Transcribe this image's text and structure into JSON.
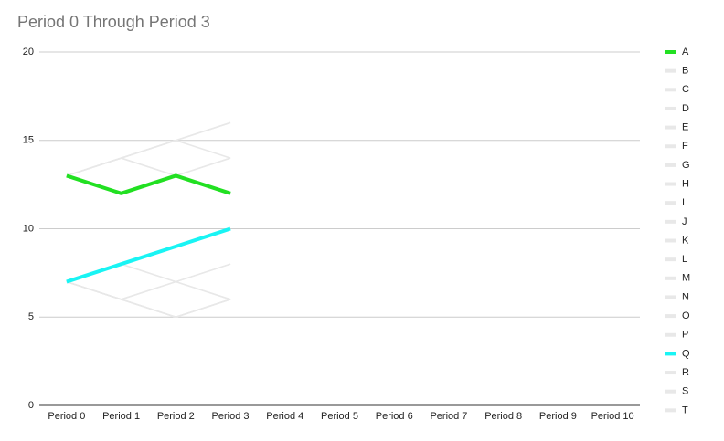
{
  "chart_data": {
    "type": "line",
    "title": "Period 0 Through Period 3",
    "categories": [
      "Period 0",
      "Period 1",
      "Period 2",
      "Period 3",
      "Period 4",
      "Period 5",
      "Period 6",
      "Period 7",
      "Period 8",
      "Period 9",
      "Period 10"
    ],
    "ylim": [
      0,
      20
    ],
    "yticks": [
      0,
      5,
      10,
      15,
      20
    ],
    "grid": true,
    "legend": "right",
    "series": [
      {
        "name": "A",
        "color": "#22e022",
        "values": [
          13,
          12,
          13,
          12,
          null,
          null,
          null,
          null,
          null,
          null,
          null
        ]
      },
      {
        "name": "B",
        "color": "#e8e8e8",
        "values": [
          13,
          14,
          15,
          16,
          null,
          null,
          null,
          null,
          null,
          null,
          null
        ]
      },
      {
        "name": "C",
        "color": "#e8e8e8",
        "values": [
          13,
          14,
          15,
          14,
          null,
          null,
          null,
          null,
          null,
          null,
          null
        ]
      },
      {
        "name": "D",
        "color": "#e8e8e8",
        "values": [
          13,
          14,
          13,
          14,
          null,
          null,
          null,
          null,
          null,
          null,
          null
        ]
      },
      {
        "name": "E",
        "color": "#e8e8e8",
        "values": [
          13,
          12,
          13,
          14,
          null,
          null,
          null,
          null,
          null,
          null,
          null
        ]
      },
      {
        "name": "F",
        "color": "#e8e8e8",
        "values": [
          13,
          14,
          13,
          12,
          null,
          null,
          null,
          null,
          null,
          null,
          null
        ]
      },
      {
        "name": "G",
        "color": "#e8e8e8",
        "values": [
          13,
          12,
          13,
          12,
          null,
          null,
          null,
          null,
          null,
          null,
          null
        ]
      },
      {
        "name": "H",
        "color": "#e8e8e8",
        "values": [
          7,
          6,
          5,
          6,
          null,
          null,
          null,
          null,
          null,
          null,
          null
        ]
      },
      {
        "name": "I",
        "color": "#e8e8e8",
        "values": [
          7,
          6,
          7,
          8,
          null,
          null,
          null,
          null,
          null,
          null,
          null
        ]
      },
      {
        "name": "J",
        "color": "#e8e8e8",
        "values": [
          7,
          8,
          7,
          6,
          null,
          null,
          null,
          null,
          null,
          null,
          null
        ]
      },
      {
        "name": "K",
        "color": "#e8e8e8",
        "values": [
          7,
          6,
          7,
          6,
          null,
          null,
          null,
          null,
          null,
          null,
          null
        ]
      },
      {
        "name": "L",
        "color": "#e8e8e8",
        "values": [
          7,
          8,
          7,
          8,
          null,
          null,
          null,
          null,
          null,
          null,
          null
        ]
      },
      {
        "name": "M",
        "color": "#e8e8e8",
        "values": [
          7,
          6,
          5,
          6,
          null,
          null,
          null,
          null,
          null,
          null,
          null
        ]
      },
      {
        "name": "N",
        "color": "#e8e8e8",
        "values": [
          7,
          8,
          9,
          10,
          null,
          null,
          null,
          null,
          null,
          null,
          null
        ]
      },
      {
        "name": "O",
        "color": "#e8e8e8",
        "values": [
          7,
          8,
          9,
          10,
          null,
          null,
          null,
          null,
          null,
          null,
          null
        ]
      },
      {
        "name": "P",
        "color": "#e8e8e8",
        "values": [
          13,
          12,
          13,
          12,
          null,
          null,
          null,
          null,
          null,
          null,
          null
        ]
      },
      {
        "name": "Q",
        "color": "#19f4f4",
        "values": [
          7,
          8,
          9,
          10,
          null,
          null,
          null,
          null,
          null,
          null,
          null
        ]
      },
      {
        "name": "R",
        "color": "#e8e8e8",
        "values": [
          13,
          14,
          15,
          16,
          null,
          null,
          null,
          null,
          null,
          null,
          null
        ]
      },
      {
        "name": "S",
        "color": "#e8e8e8",
        "values": [
          7,
          6,
          5,
          6,
          null,
          null,
          null,
          null,
          null,
          null,
          null
        ]
      },
      {
        "name": "T",
        "color": "#e8e8e8",
        "values": [
          13,
          12,
          13,
          12,
          null,
          null,
          null,
          null,
          null,
          null,
          null
        ]
      }
    ]
  }
}
